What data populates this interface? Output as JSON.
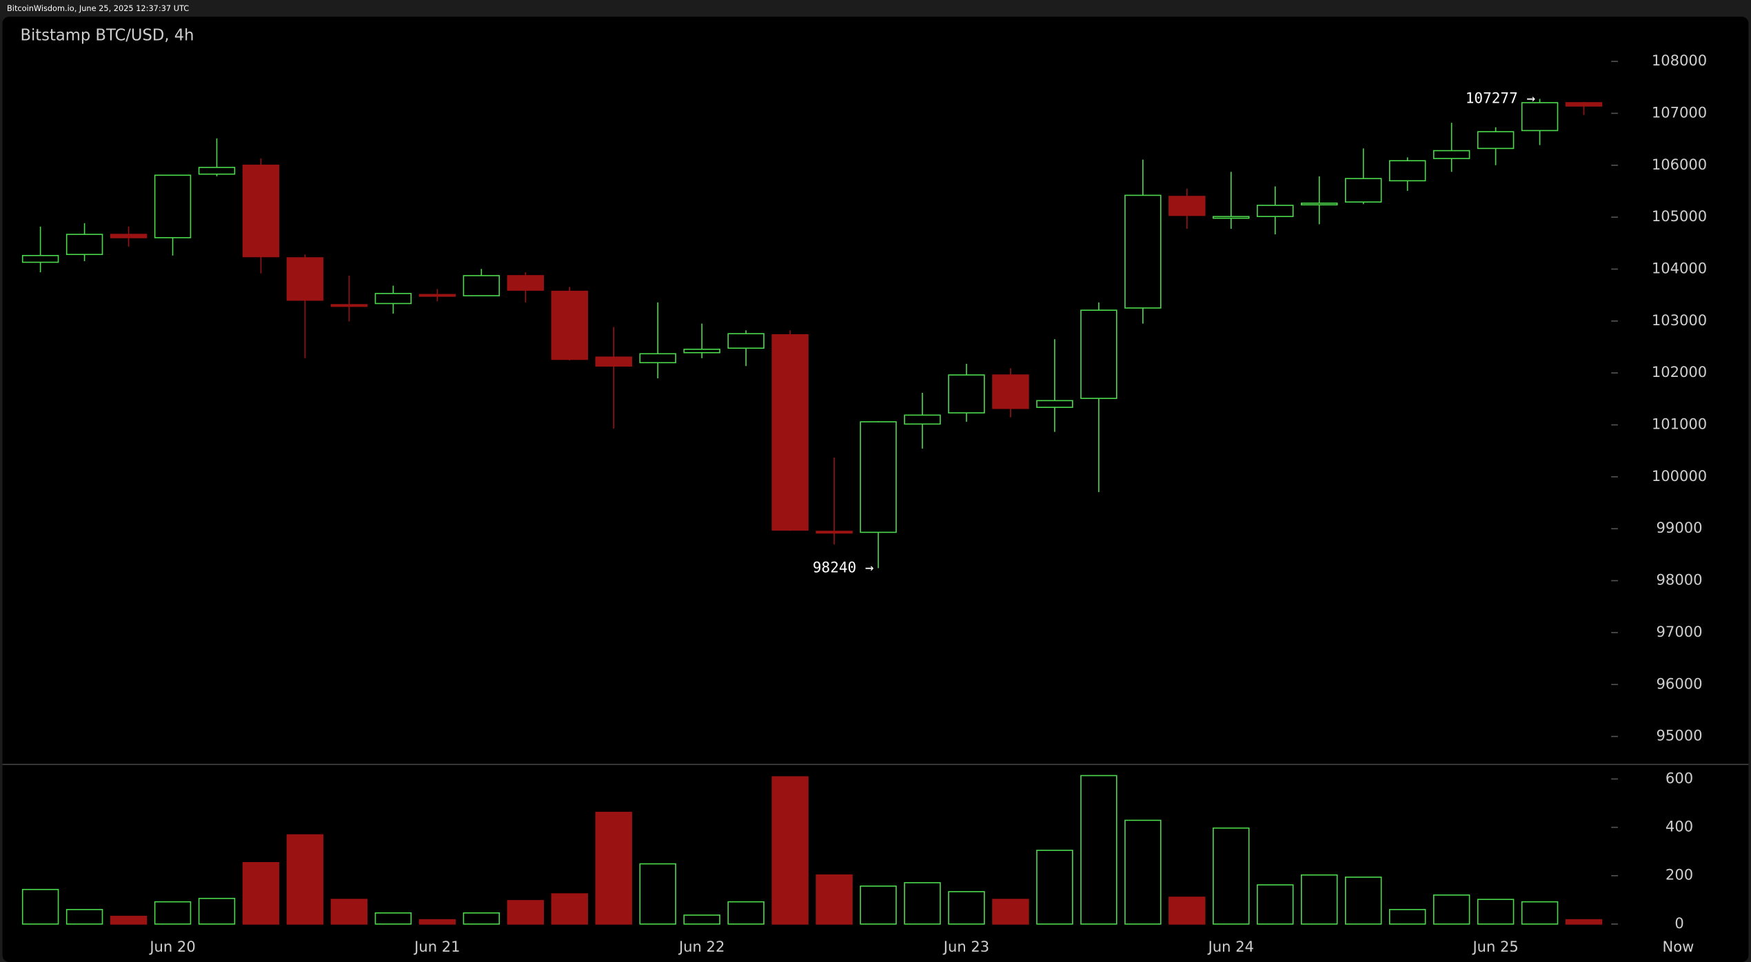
{
  "header": "BitcoinWisdom.io, June 25, 2025 12:37:37 UTC",
  "chart_data": {
    "type": "candlestick",
    "title": "Bitstamp BTC/USD, 4h",
    "categories": [
      null,
      null,
      null,
      "Jun 20",
      null,
      null,
      null,
      null,
      null,
      "Jun 21",
      null,
      null,
      null,
      null,
      null,
      "Jun 22",
      null,
      null,
      null,
      null,
      null,
      "Jun 23",
      null,
      null,
      null,
      null,
      null,
      "Jun 24",
      null,
      null,
      null,
      null,
      null,
      "Jun 25",
      null,
      null
    ],
    "end_label": "Now",
    "open": [
      104132,
      104282,
      104669,
      104605,
      105829,
      106001,
      104218,
      103315,
      103337,
      103510,
      103487,
      103874,
      103573,
      102305,
      102198,
      102391,
      102477,
      102735,
      98950,
      98931,
      101016,
      101231,
      101961,
      101338,
      101510,
      103251,
      105400,
      104990,
      105013,
      105240,
      105292,
      105701,
      106130,
      106324,
      106668,
      107205
    ],
    "high": [
      104819,
      104884,
      104819,
      105808,
      106517,
      106130,
      104282,
      103874,
      103681,
      103616,
      104003,
      103938,
      103659,
      102885,
      103358,
      102950,
      102821,
      102821,
      100371,
      101070,
      101618,
      102176,
      102090,
      102649,
      103358,
      106109,
      105550,
      105873,
      105593,
      105787,
      106324,
      106152,
      106818,
      106732,
      107277,
      107220
    ],
    "low": [
      103938,
      104153,
      104433,
      104261,
      105787,
      103917,
      102284,
      102993,
      103143,
      103380,
      103487,
      103358,
      102240,
      100930,
      101897,
      102284,
      102133,
      98960,
      98695,
      98240,
      100543,
      101059,
      101145,
      100865,
      99705,
      102950,
      104776,
      104776,
      104669,
      104862,
      105250,
      105507,
      105873,
      106001,
      106388,
      106968
    ],
    "close": [
      104261,
      104669,
      104605,
      105808,
      105958,
      104239,
      103401,
      103300,
      103530,
      103490,
      103874,
      103594,
      102262,
      102133,
      102370,
      102456,
      102756,
      98974,
      98930,
      101059,
      101188,
      101961,
      101317,
      101467,
      103208,
      105421,
      105034,
      105012,
      105228,
      105270,
      105744,
      106087,
      106281,
      106646,
      107205,
      107140
    ],
    "volume": [
      143,
      60,
      32,
      92,
      106,
      254,
      369,
      102,
      46,
      18,
      46,
      97,
      125,
      462,
      249,
      37,
      92,
      609,
      203,
      157,
      171,
      134,
      102,
      305,
      614,
      429,
      111,
      397,
      162,
      203,
      194,
      60,
      120,
      102,
      92,
      18
    ],
    "ylim": [
      94460,
      108860
    ],
    "yticks": [
      95000,
      96000,
      97000,
      98000,
      99000,
      100000,
      101000,
      102000,
      103000,
      104000,
      105000,
      106000,
      107000,
      108000
    ],
    "volume_lim": [
      0,
      660
    ],
    "volume_ticks": [
      0,
      200,
      400,
      600
    ],
    "annotations": [
      {
        "value": 107277,
        "label": "107277 →"
      },
      {
        "value": 98240,
        "label": "98240 →"
      }
    ],
    "up_color": "#4cd94c",
    "down_color": "#9b1212"
  }
}
